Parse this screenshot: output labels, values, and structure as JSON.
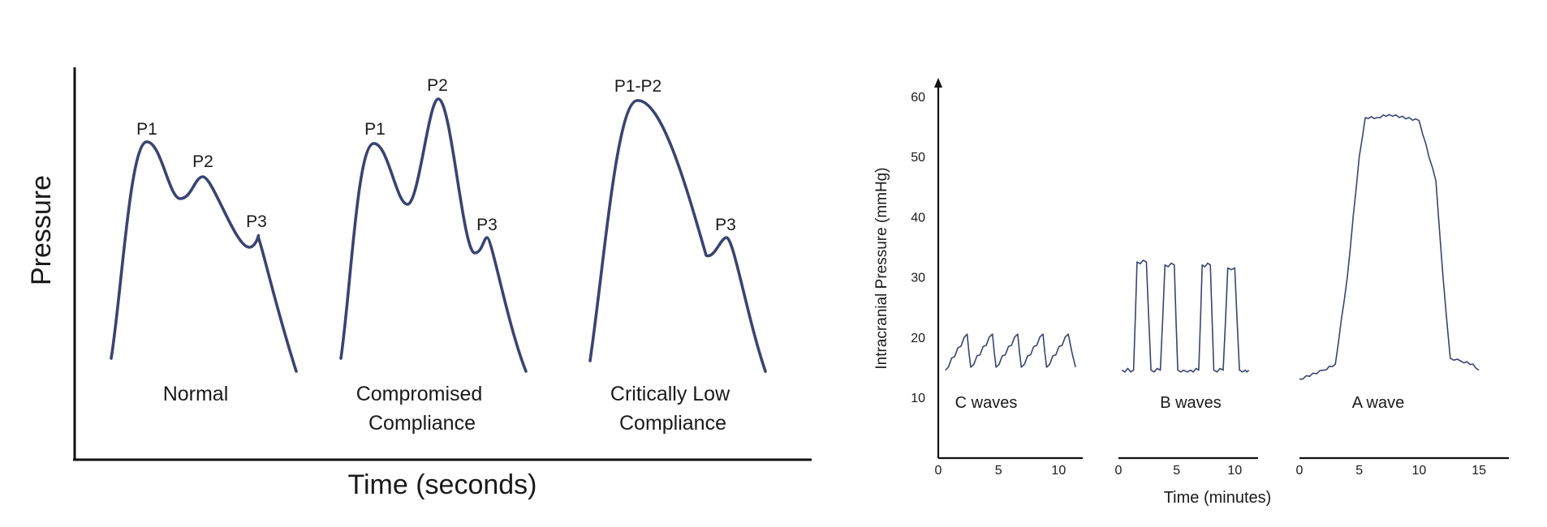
{
  "chart_data": [
    {
      "type": "line",
      "title": "",
      "xlabel": "Time (seconds)",
      "ylabel": "Pressure",
      "series": [
        {
          "category": "Normal",
          "peaks": [
            "P1",
            "P2",
            "P3"
          ],
          "points": [
            [
              0,
              0.04
            ],
            [
              0.32,
              1.0
            ],
            [
              0.62,
              0.74
            ],
            [
              0.82,
              0.83
            ],
            [
              1.15,
              0.5
            ],
            [
              1.36,
              0.56
            ],
            [
              1.8,
              0.0
            ]
          ]
        },
        {
          "category": "Compromised Compliance",
          "peaks": [
            "P1",
            "P2",
            "P3"
          ],
          "points": [
            [
              0,
              0.05
            ],
            [
              0.32,
              1.0
            ],
            [
              0.62,
              0.74
            ],
            [
              0.9,
              1.21
            ],
            [
              1.26,
              0.56
            ],
            [
              1.36,
              0.61
            ],
            [
              1.8,
              0.0
            ]
          ]
        },
        {
          "category": "Critically Low Compliance",
          "peaks": [
            "P1-P2",
            "P3"
          ],
          "points": [
            [
              0,
              0.04
            ],
            [
              0.45,
              1.21
            ],
            [
              1.15,
              0.54
            ],
            [
              1.35,
              0.61
            ],
            [
              1.8,
              0.0
            ]
          ]
        }
      ],
      "category_labels": [
        {
          "lines": [
            "Normal"
          ]
        },
        {
          "lines": [
            "Compromised",
            "Compliance"
          ]
        },
        {
          "lines": [
            "Critically Low",
            "Compliance"
          ]
        }
      ]
    },
    {
      "type": "line",
      "title": "",
      "xlabel": "Time (minutes)",
      "ylabel": "Intracranial Pressure (mmHg)",
      "ylim": [
        10,
        60
      ],
      "yticks": [
        10,
        20,
        30,
        40,
        50,
        60
      ],
      "panels": [
        {
          "name": "C waves",
          "xticks": [
            0,
            5,
            10
          ],
          "xlim": [
            0,
            12
          ],
          "x": [
            0.6,
            2.4,
            2.7,
            4.5,
            4.8,
            6.6,
            6.9,
            8.7,
            9.0,
            10.8,
            11.4
          ],
          "y": [
            14.5,
            20.5,
            15.0,
            20.5,
            15.0,
            20.5,
            15.0,
            20.5,
            15.0,
            20.5,
            15.0
          ]
        },
        {
          "name": "B waves",
          "xticks": [
            0,
            5,
            10
          ],
          "xlim": [
            0,
            12
          ],
          "x": [
            0.3,
            1.3,
            1.6,
            2.4,
            2.8,
            3.6,
            4.0,
            4.8,
            5.1,
            5.6,
            6.2,
            6.9,
            7.2,
            7.9,
            8.2,
            9.0,
            9.4,
            10.0,
            10.4,
            10.9,
            11.2
          ],
          "y": [
            14.5,
            14.5,
            32.5,
            32.5,
            14.5,
            14.5,
            32.0,
            32.0,
            14.5,
            14.5,
            14.5,
            14.5,
            32.0,
            32.0,
            14.5,
            14.5,
            31.5,
            31.5,
            14.5,
            14.5,
            14.5
          ]
        },
        {
          "name": "A wave",
          "xticks": [
            0,
            5,
            10,
            15
          ],
          "xlim": [
            0,
            17.5
          ],
          "x": [
            0.0,
            2.0,
            3.0,
            4.0,
            5.0,
            5.5,
            6.5,
            7.5,
            10.0,
            11.4,
            12.0,
            12.6,
            13.5,
            14.5,
            15.0
          ],
          "y": [
            13.0,
            14.5,
            15.5,
            30.0,
            50.0,
            56.5,
            56.5,
            57.0,
            56.0,
            46.0,
            30.0,
            16.5,
            16.0,
            15.5,
            14.5
          ]
        }
      ]
    }
  ]
}
